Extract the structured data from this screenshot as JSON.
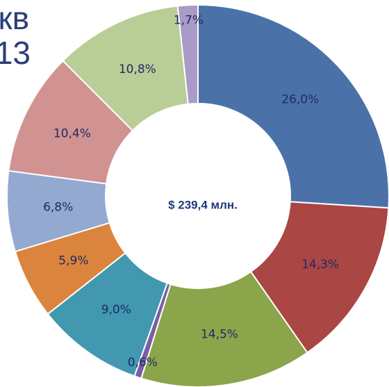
{
  "chart_data": {
    "type": "donut",
    "title_fragments": [
      "кв",
      "13"
    ],
    "center_label": "$ 239,4 млн.",
    "values": [
      26.0,
      14.3,
      14.5,
      0.6,
      9.0,
      5.9,
      6.8,
      10.4,
      10.8,
      1.7
    ],
    "value_labels": [
      "26,0%",
      "14,3%",
      "14,5%",
      "0,6%",
      "9,0%",
      "5,9%",
      "6,8%",
      "10,4%",
      "10,8%",
      "1,7%"
    ],
    "colors": [
      "#4a72a8",
      "#aa4643",
      "#8ba54b",
      "#7b5ea7",
      "#4198af",
      "#db843d",
      "#93a9d0",
      "#d09391",
      "#b9cd96",
      "#a99bc6"
    ]
  }
}
